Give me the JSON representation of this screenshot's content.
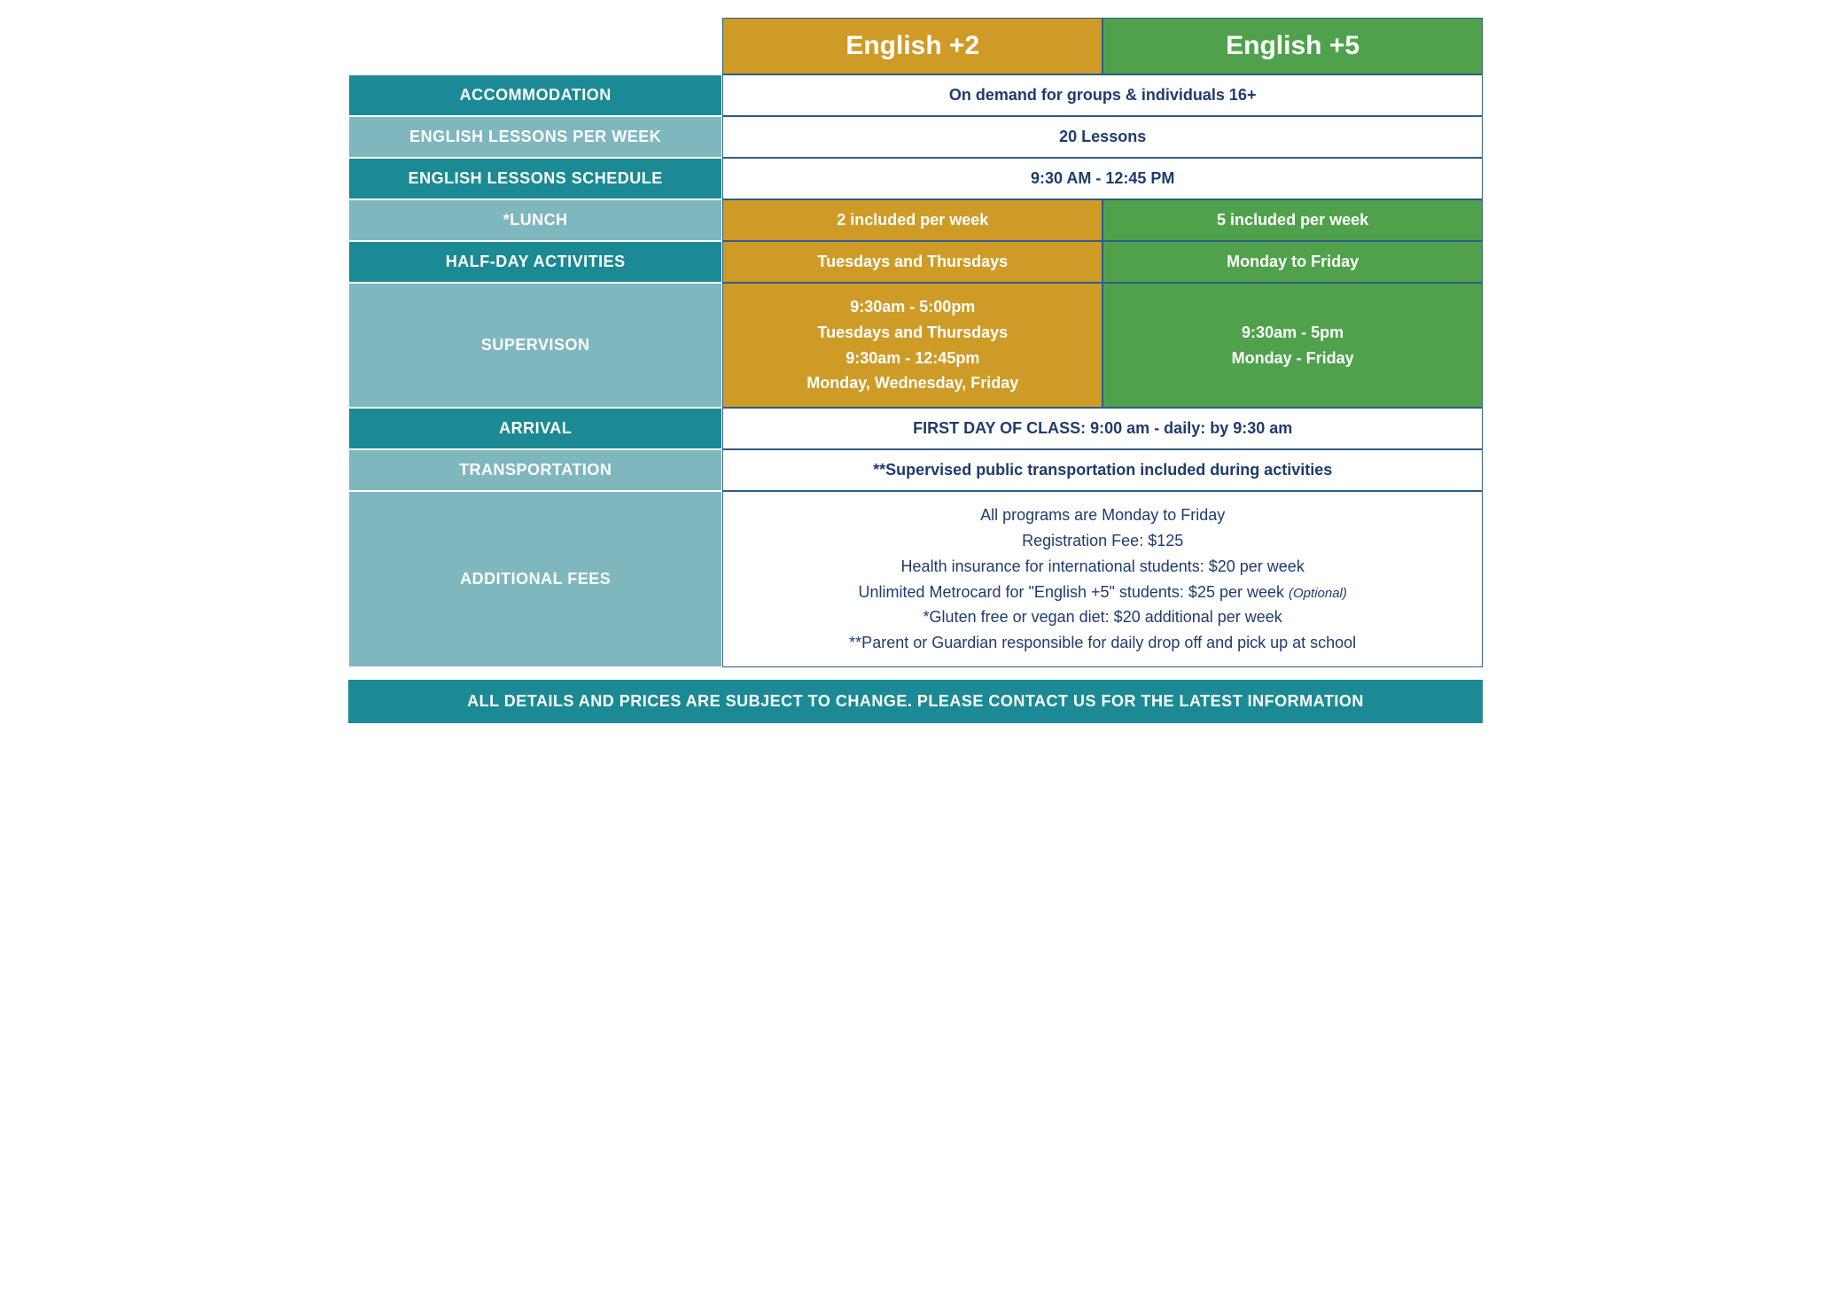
{
  "colors": {
    "teal_dark": "#1b8a94",
    "teal_light": "#7fb7bf",
    "gold": "#cf9b27",
    "green": "#4fa24b",
    "navy_text": "#1f3b6e",
    "white": "#ffffff",
    "footer_teal": "#1b8a94"
  },
  "header": {
    "col2": "English +2",
    "col5": "English +5"
  },
  "rows": {
    "accommodation": {
      "label": "ACCOMMODATION",
      "value": "On demand for groups & individuals 16+"
    },
    "lessons_per_week": {
      "label": "ENGLISH LESSONS PER WEEK",
      "value": "20 Lessons"
    },
    "lessons_schedule": {
      "label": "ENGLISH LESSONS SCHEDULE",
      "value": "9:30 AM - 12:45 PM"
    },
    "lunch": {
      "label": "*LUNCH",
      "col2": "2 included per week",
      "col5": "5 included per week"
    },
    "halfday": {
      "label": "HALF-DAY ACTIVITIES",
      "col2": "Tuesdays and Thursdays",
      "col5": "Monday to Friday"
    },
    "supervision": {
      "label": "SUPERVISON",
      "col2_line1": "9:30am - 5:00pm",
      "col2_line2": "Tuesdays and Thursdays",
      "col2_line3": "9:30am - 12:45pm",
      "col2_line4": "Monday, Wednesday, Friday",
      "col5_line1": "9:30am - 5pm",
      "col5_line2": "Monday - Friday"
    },
    "arrival": {
      "label": "ARRIVAL",
      "value": "FIRST DAY OF CLASS: 9:00 am - daily: by 9:30 am"
    },
    "transportation": {
      "label": "TRANSPORTATION",
      "value": "**Supervised public transportation included during activities"
    },
    "additional_fees": {
      "label": "ADDITIONAL FEES",
      "line1": "All programs are Monday to Friday",
      "line2": "Registration Fee: $125",
      "line3": "Health insurance for international students: $20 per week",
      "line4_a": "Unlimited Metrocard for \"English +5\" students: $25 per week ",
      "line4_b": "(Optional)",
      "line5": "*Gluten free or vegan diet: $20 additional per week",
      "line6": "**Parent or Guardian responsible for daily drop off and pick up at school"
    }
  },
  "footer": "ALL DETAILS AND PRICES ARE SUBJECT TO CHANGE. PLEASE CONTACT US FOR THE LATEST INFORMATION"
}
